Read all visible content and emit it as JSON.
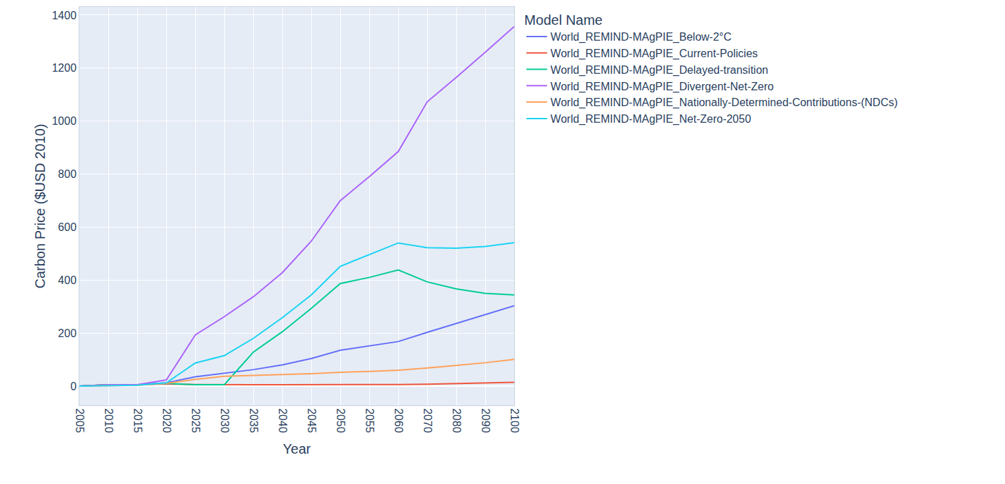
{
  "chart_data": {
    "type": "line",
    "x_label": "Year",
    "y_label": "Carbon Price ($USD 2010)",
    "legend_title": "Model Name",
    "categories": [
      "2005",
      "2010",
      "2015",
      "2020",
      "2025",
      "2030",
      "2035",
      "2040",
      "2045",
      "2050",
      "2055",
      "2060",
      "2070",
      "2080",
      "2090",
      "2100"
    ],
    "series": [
      {
        "name": "World_REMIND-MAgPIE_Below-2°C",
        "color": "#636efa",
        "values": [
          0,
          5,
          5,
          12,
          35,
          48,
          62,
          80,
          104,
          135,
          152,
          168,
          203,
          236,
          270,
          303
        ]
      },
      {
        "name": "World_REMIND-MAgPIE_Current-Policies",
        "color": "#EF553B",
        "values": [
          0,
          5,
          5,
          8,
          6,
          5,
          5,
          5,
          5,
          5,
          5,
          6,
          7,
          9,
          11,
          14
        ]
      },
      {
        "name": "World_REMIND-MAgPIE_Delayed-transition",
        "color": "#00cc96",
        "values": [
          0,
          5,
          5,
          10,
          5,
          5,
          128,
          205,
          293,
          387,
          410,
          438,
          393,
          367,
          350,
          344
        ]
      },
      {
        "name": "World_REMIND-MAgPIE_Divergent-Net-Zero",
        "color": "#ab63fa",
        "values": [
          0,
          5,
          5,
          23,
          193,
          262,
          337,
          428,
          547,
          700,
          790,
          885,
          1073,
          1165,
          1260,
          1357
        ]
      },
      {
        "name": "World_REMIND-MAgPIE_Nationally-Determined-Contributions-(NDCs)",
        "color": "#FFA15A",
        "values": [
          0,
          2,
          3,
          10,
          25,
          37,
          40,
          44,
          47,
          52,
          55,
          60,
          68,
          78,
          88,
          101
        ]
      },
      {
        "name": "World_REMIND-MAgPIE_Net-Zero-2050",
        "color": "#19d3f3",
        "values": [
          0,
          2,
          3,
          12,
          87,
          115,
          180,
          258,
          344,
          452,
          495,
          540,
          522,
          520,
          527,
          541
        ]
      }
    ],
    "ylim": [
      -73,
      1431
    ],
    "yticks": [
      0,
      200,
      400,
      600,
      800,
      1000,
      1200,
      1400
    ],
    "grid": true,
    "legend": "right",
    "line_style": "solid"
  }
}
